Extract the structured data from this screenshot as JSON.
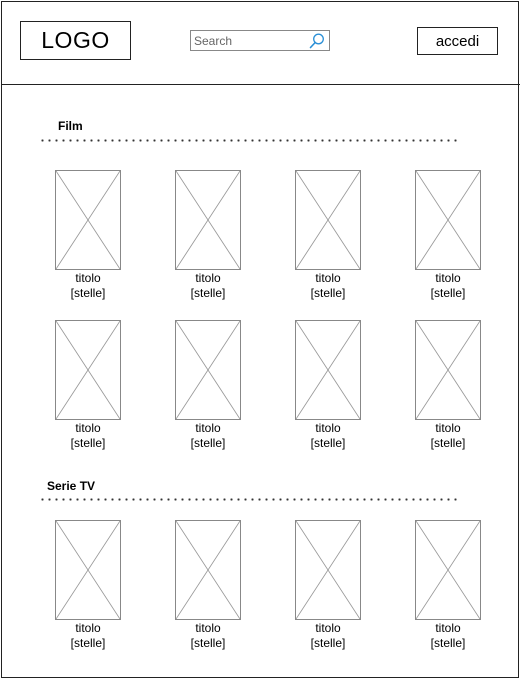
{
  "header": {
    "logo": "LOGO",
    "search_placeholder": "Search",
    "login_label": "accedi"
  },
  "sections": [
    {
      "title": "Film",
      "items": [
        {
          "title": "titolo",
          "stars": "[stelle]"
        },
        {
          "title": "titolo",
          "stars": "[stelle]"
        },
        {
          "title": "titolo",
          "stars": "[stelle]"
        },
        {
          "title": "titolo",
          "stars": "[stelle]"
        },
        {
          "title": "titolo",
          "stars": "[stelle]"
        },
        {
          "title": "titolo",
          "stars": "[stelle]"
        },
        {
          "title": "titolo",
          "stars": "[stelle]"
        },
        {
          "title": "titolo",
          "stars": "[stelle]"
        }
      ]
    },
    {
      "title": "Serie TV",
      "items": [
        {
          "title": "titolo",
          "stars": "[stelle]"
        },
        {
          "title": "titolo",
          "stars": "[stelle]"
        },
        {
          "title": "titolo",
          "stars": "[stelle]"
        },
        {
          "title": "titolo",
          "stars": "[stelle]"
        }
      ]
    }
  ]
}
